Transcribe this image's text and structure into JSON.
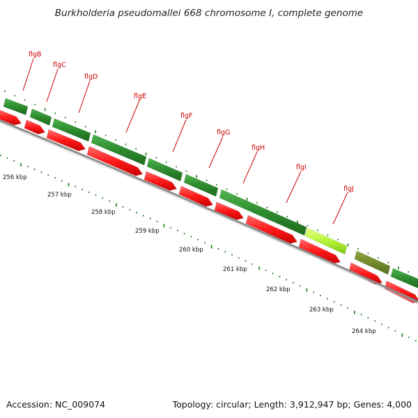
{
  "map": {
    "title": "Burkholderia pseudomallei 668 chromosome I, complete genome",
    "accession": "Accession: NC_009074",
    "summary": "Topology: circular; Length: 3,912,947 bp; Genes: 4,000"
  },
  "colors": {
    "forward_gene": "#2e8b2e",
    "forward_gene_highlight": "#adff2f",
    "forward_gene_olive": "#6b8e23",
    "reverse_cds": "#ff1a1a",
    "backbone": "#8c8c8c",
    "tick": "#1a7a1a",
    "label": "#cc0000"
  },
  "genes": [
    "flgB",
    "flgC",
    "flgD",
    "flgE",
    "flgF",
    "flgG",
    "flgH",
    "flgI",
    "flgJ"
  ],
  "kbp_ticks": [
    "256 kbp",
    "257 kbp",
    "258 kbp",
    "259 kbp",
    "260 kbp",
    "261 kbp",
    "262 kbp",
    "263 kbp",
    "264 kbp"
  ]
}
